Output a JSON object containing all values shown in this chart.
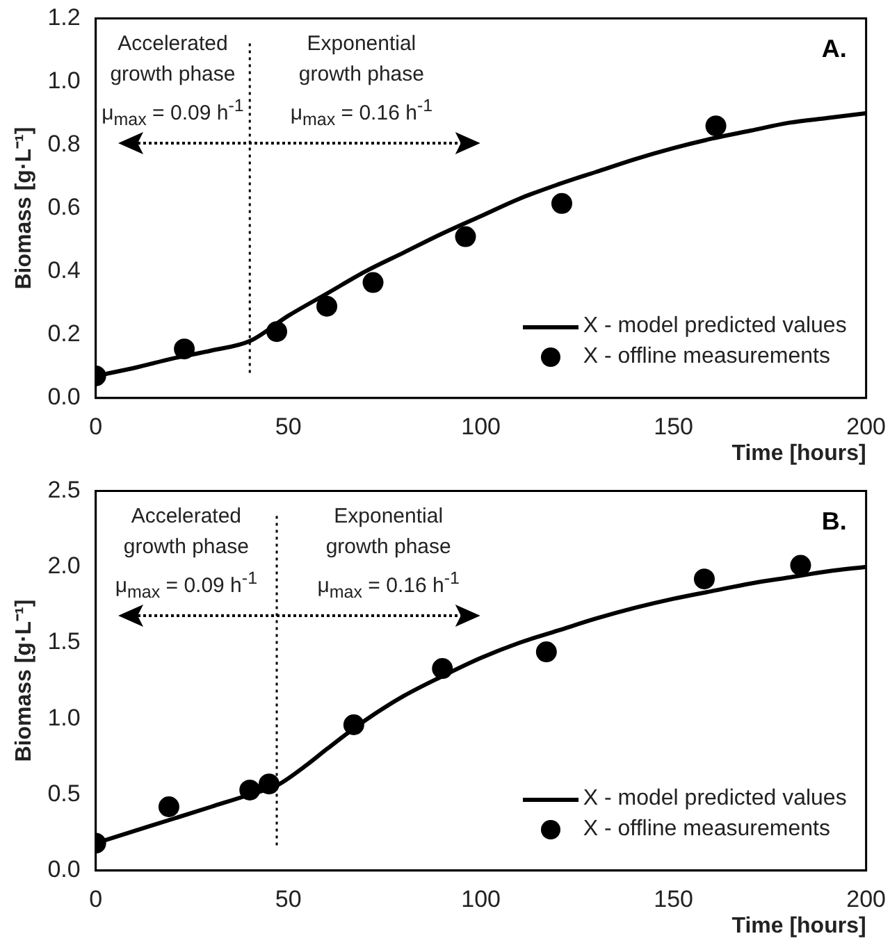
{
  "chart_data": [
    {
      "type": "line",
      "xlabel": "Time [hours]",
      "ylabel": "Biomass [g·L⁻¹]",
      "xlim": [
        0,
        200
      ],
      "xticks": [
        0,
        50,
        100,
        150,
        200
      ],
      "ylim": [
        0,
        1.2
      ],
      "yticks": [
        {
          "value": 0,
          "label": "0.0"
        },
        0.2,
        0.4,
        0.6,
        0.8,
        {
          "value": 1,
          "label": "1.0"
        },
        1.2
      ],
      "grid": false,
      "legend": "bottom right",
      "line_style": "solid",
      "series": [
        {
          "name": "X - model predicted values",
          "type": "line",
          "color": "#000000",
          "marker": "none",
          "x": [
            0,
            10,
            20,
            30,
            40,
            50,
            60,
            70,
            80,
            90,
            100,
            110,
            120,
            130,
            140,
            150,
            160,
            170,
            180,
            190,
            200
          ],
          "values": [
            0.07,
            0.095,
            0.125,
            0.15,
            0.18,
            0.26,
            0.33,
            0.4,
            0.46,
            0.52,
            0.575,
            0.63,
            0.675,
            0.715,
            0.755,
            0.79,
            0.82,
            0.845,
            0.87,
            0.885,
            0.9
          ]
        },
        {
          "name": "X - offline measurements",
          "type": "scatter",
          "color": "#000000",
          "marker": "circle",
          "x": [
            0,
            23,
            47,
            60,
            72,
            96,
            121,
            161
          ],
          "values": [
            0.07,
            0.155,
            0.21,
            0.29,
            0.365,
            0.51,
            0.615,
            0.86
          ]
        }
      ],
      "ref_lines": [
        {
          "axis": "x",
          "value": 40,
          "line_style": "dotted",
          "color": "#000000"
        }
      ],
      "annotations": [
        "Accelerated growth phase μ$_{max}$ = 0.09 h$^{-1}$",
        "Exponential growth phase μ$_{max}$ = 0.16 h$^{-1}$",
        "A."
      ]
    },
    {
      "type": "line",
      "xlabel": "Time [hours]",
      "ylabel": "Biomass [g·L⁻¹]",
      "xlim": [
        0,
        200
      ],
      "xticks": [
        0,
        50,
        100,
        150,
        200
      ],
      "ylim": [
        0,
        2.5
      ],
      "yticks": [
        {
          "value": 0,
          "label": "0.0"
        },
        0.5,
        {
          "value": 1,
          "label": "1.0"
        },
        1.5,
        {
          "value": 2,
          "label": "2.0"
        },
        2.5
      ],
      "grid": false,
      "legend": "bottom right",
      "line_style": "solid",
      "series": [
        {
          "name": "X - model predicted values",
          "type": "line",
          "color": "#000000",
          "marker": "none",
          "x": [
            0,
            10,
            20,
            30,
            40,
            47,
            55,
            60,
            70,
            80,
            90,
            100,
            110,
            120,
            130,
            140,
            150,
            160,
            170,
            180,
            190,
            200
          ],
          "values": [
            0.18,
            0.26,
            0.34,
            0.42,
            0.5,
            0.56,
            0.7,
            0.8,
            0.99,
            1.15,
            1.28,
            1.4,
            1.5,
            1.58,
            1.66,
            1.73,
            1.79,
            1.84,
            1.89,
            1.93,
            1.97,
            2.0
          ]
        },
        {
          "name": "X - offline measurements",
          "type": "scatter",
          "color": "#000000",
          "marker": "circle",
          "x": [
            0,
            19,
            40,
            45,
            67,
            90,
            117,
            158,
            183
          ],
          "values": [
            0.18,
            0.42,
            0.53,
            0.57,
            0.96,
            1.33,
            1.44,
            1.92,
            2.01
          ]
        }
      ],
      "ref_lines": [
        {
          "axis": "x",
          "value": 47,
          "line_style": "dotted",
          "color": "#000000"
        }
      ],
      "annotations": [
        "Accelerated growth phase μ$_{max}$ = 0.09 h$^{-1}$",
        "Exponential growth phase μ$_{max}$ = 0.16 h$^{-1}$",
        "B."
      ]
    }
  ]
}
